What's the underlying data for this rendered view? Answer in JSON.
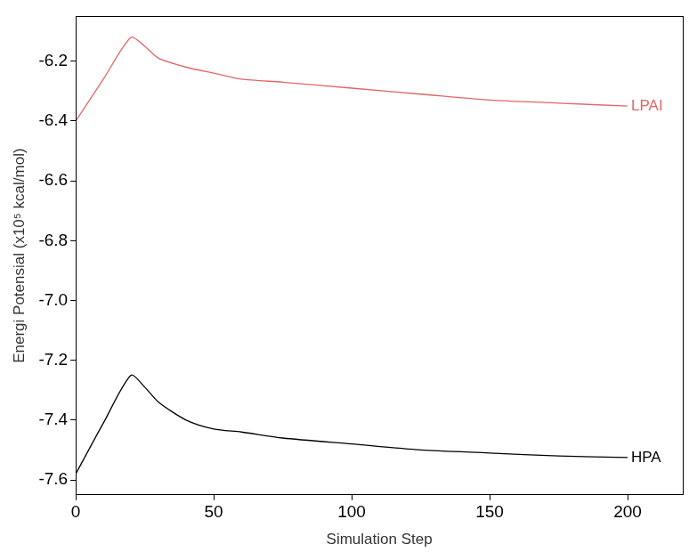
{
  "chart_data": {
    "type": "line",
    "x_label": "Simulation Step",
    "y_label": "Energi Potensial (x10⁵ kcal/mol)",
    "xlim": [
      0,
      220
    ],
    "xticks": [
      0,
      50,
      100,
      150,
      200
    ],
    "ylim": [
      -7.65,
      -6.05
    ],
    "yticks": [
      -7.6,
      -7.4,
      -7.2,
      {
        "value": -7,
        "label": "-7.0"
      },
      -6.8,
      -6.6,
      -6.4,
      -6.2
    ],
    "grid": false,
    "series": [
      {
        "name": "LPAI",
        "color": "#e06666",
        "x": [
          0,
          10,
          20,
          25,
          30,
          40,
          50,
          60,
          75,
          100,
          125,
          150,
          175,
          200
        ],
        "values": [
          -6.4,
          -6.26,
          -6.12,
          -6.15,
          -6.19,
          -6.22,
          -6.24,
          -6.26,
          -6.27,
          -6.29,
          -6.31,
          -6.33,
          -6.34,
          -6.35
        ]
      },
      {
        "name": "HPA",
        "color": "#000000",
        "x": [
          0,
          10,
          20,
          25,
          30,
          40,
          50,
          60,
          75,
          100,
          125,
          150,
          175,
          200
        ],
        "values": [
          -7.58,
          -7.41,
          -7.25,
          -7.29,
          -7.34,
          -7.4,
          -7.43,
          -7.44,
          -7.46,
          -7.48,
          -7.5,
          -7.51,
          -7.52,
          -7.525
        ]
      }
    ]
  }
}
